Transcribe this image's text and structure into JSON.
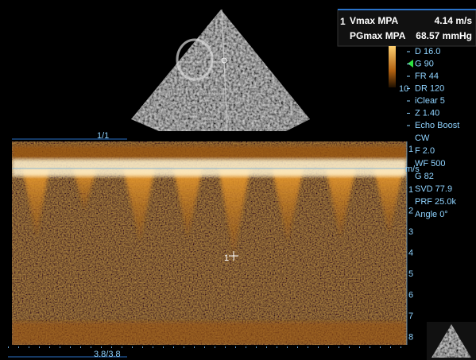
{
  "measurement": {
    "index": "1",
    "rows": [
      {
        "label": "Vmax MPA",
        "value": "4.14 m/s"
      },
      {
        "label": "PGmax MPA",
        "value": "68.57 mmHg"
      }
    ]
  },
  "image_settings": [
    "D 16.0",
    "G 90",
    "FR 44",
    "DR 120",
    "iClear 5",
    "Z 1.40",
    "Echo Boost"
  ],
  "dr_marker": "10",
  "doppler_settings": [
    "CW",
    "F 2.0",
    "WF 500",
    "G 82",
    "SVD 77.9",
    "PRF 25.0k",
    "Angle 0°"
  ],
  "scale": {
    "unit": "m/s",
    "ticks_above": [
      "1"
    ],
    "ticks_below": [
      "1",
      "2",
      "3",
      "4",
      "5",
      "6",
      "7",
      "8"
    ]
  },
  "frame_counter": "1/1",
  "sweep_counter": "3.8/3.8",
  "cursor_label": "1"
}
